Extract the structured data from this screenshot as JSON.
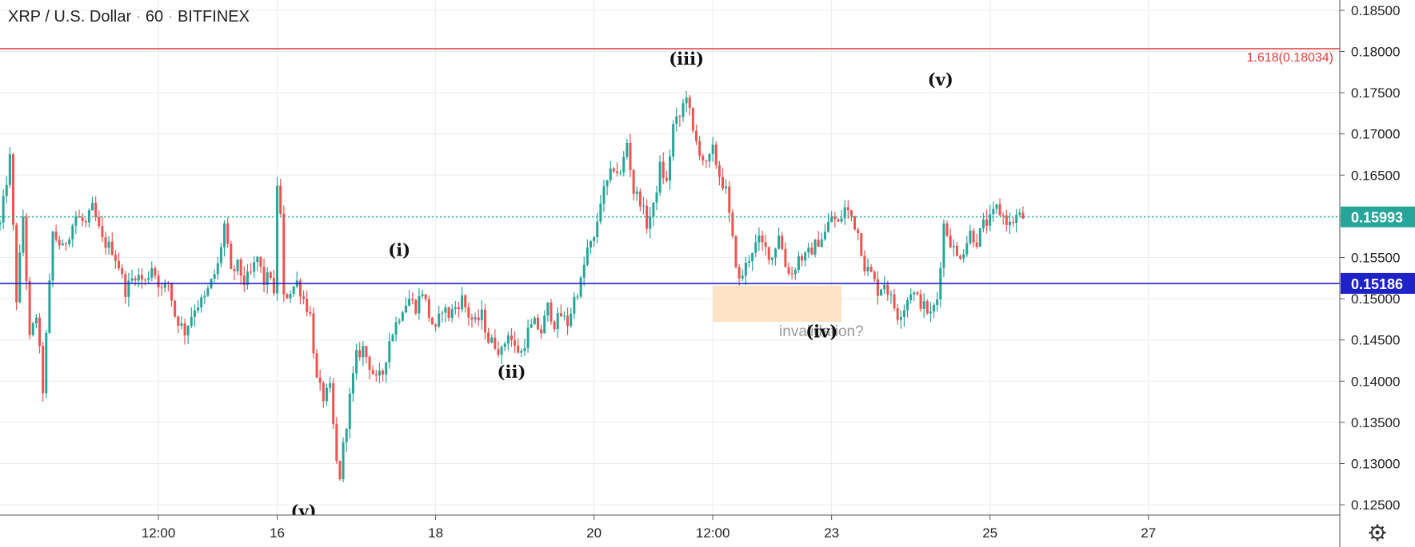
{
  "title": {
    "symbol": "XRP / U.S. Dollar",
    "interval": "60",
    "exchange": "BITFINEX"
  },
  "colors": {
    "up": "#26a69a",
    "down": "#ef5350",
    "fib_line": "#e53935",
    "support_line": "#1e22c8",
    "current_price_bg": "#26a69a",
    "support_price_bg": "#1e22c8",
    "zone": "#fde2c4",
    "grid": "#e6ecf2"
  },
  "settings_icon": "gear-icon",
  "chart_data": {
    "type": "candlestick",
    "ylim": [
      0.12375,
      0.18625
    ],
    "y_ticks": [
      "0.18500",
      "0.18000",
      "0.17500",
      "0.17000",
      "0.16500",
      "0.16000",
      "0.15500",
      "0.15000",
      "0.14500",
      "0.14000",
      "0.13500",
      "0.13000",
      "0.12500"
    ],
    "x_range_hours": [
      -36,
      370
    ],
    "x_ticks": [
      {
        "label": "12:00",
        "hour": 12
      },
      {
        "label": "16",
        "hour": 48
      },
      {
        "label": "18",
        "hour": 96
      },
      {
        "label": "20",
        "hour": 144
      },
      {
        "label": "12:00",
        "hour": 180
      },
      {
        "label": "23",
        "hour": 216
      },
      {
        "label": "25",
        "hour": 264
      },
      {
        "label": "27",
        "hour": 312
      }
    ],
    "current_price": {
      "value": 0.15993,
      "label": "0.15993"
    },
    "support": {
      "value": 0.15186,
      "label": "0.15186"
    },
    "fib": {
      "value": 0.18034,
      "label": "1.618(0.18034)"
    },
    "zone": {
      "hour_start": 180,
      "hour_end": 219,
      "y_low": 0.1472,
      "y_high": 0.1516,
      "label": "invalidation?"
    },
    "path": [
      [
        -36,
        0.159
      ],
      [
        -33,
        0.167
      ],
      [
        -31,
        0.15
      ],
      [
        -29,
        0.16
      ],
      [
        -27,
        0.145
      ],
      [
        -25,
        0.148
      ],
      [
        -23,
        0.139
      ],
      [
        -20,
        0.158
      ],
      [
        -17,
        0.156
      ],
      [
        -13,
        0.16
      ],
      [
        -10,
        0.159
      ],
      [
        -8,
        0.161
      ],
      [
        -5,
        0.157
      ],
      [
        -2,
        0.156
      ],
      [
        0,
        0.154
      ],
      [
        2,
        0.151
      ],
      [
        5,
        0.153
      ],
      [
        8,
        0.152
      ],
      [
        10,
        0.154
      ],
      [
        13,
        0.151
      ],
      [
        15,
        0.152
      ],
      [
        17,
        0.148
      ],
      [
        20,
        0.146
      ],
      [
        23,
        0.149
      ],
      [
        26,
        0.15
      ],
      [
        28,
        0.152
      ],
      [
        30,
        0.154
      ],
      [
        32,
        0.159
      ],
      [
        34,
        0.153
      ],
      [
        36,
        0.154
      ],
      [
        38,
        0.152
      ],
      [
        40,
        0.153
      ],
      [
        42,
        0.155
      ],
      [
        44,
        0.152
      ],
      [
        46,
        0.153
      ],
      [
        47,
        0.15
      ],
      [
        48,
        0.164
      ],
      [
        49,
        0.16
      ],
      [
        50,
        0.15
      ],
      [
        52,
        0.151
      ],
      [
        54,
        0.152
      ],
      [
        56,
        0.15
      ],
      [
        58,
        0.148
      ],
      [
        60,
        0.14
      ],
      [
        62,
        0.138
      ],
      [
        64,
        0.139
      ],
      [
        66,
        0.13
      ],
      [
        67,
        0.1285
      ],
      [
        68,
        0.132
      ],
      [
        70,
        0.138
      ],
      [
        72,
        0.143
      ],
      [
        74,
        0.144
      ],
      [
        76,
        0.142
      ],
      [
        78,
        0.14
      ],
      [
        80,
        0.141
      ],
      [
        82,
        0.145
      ],
      [
        84,
        0.147
      ],
      [
        86,
        0.149
      ],
      [
        88,
        0.15
      ],
      [
        90,
        0.149
      ],
      [
        92,
        0.151
      ],
      [
        94,
        0.148
      ],
      [
        96,
        0.146
      ],
      [
        98,
        0.149
      ],
      [
        100,
        0.148
      ],
      [
        102,
        0.149
      ],
      [
        104,
        0.15
      ],
      [
        106,
        0.148
      ],
      [
        108,
        0.147
      ],
      [
        110,
        0.148
      ],
      [
        112,
        0.145
      ],
      [
        114,
        0.1445
      ],
      [
        116,
        0.1435
      ],
      [
        118,
        0.146
      ],
      [
        120,
        0.144
      ],
      [
        122,
        0.1435
      ],
      [
        124,
        0.146
      ],
      [
        126,
        0.147
      ],
      [
        128,
        0.146
      ],
      [
        130,
        0.149
      ],
      [
        132,
        0.147
      ],
      [
        134,
        0.148
      ],
      [
        136,
        0.147
      ],
      [
        138,
        0.15
      ],
      [
        140,
        0.152
      ],
      [
        142,
        0.156
      ],
      [
        144,
        0.157
      ],
      [
        146,
        0.162
      ],
      [
        148,
        0.164
      ],
      [
        150,
        0.166
      ],
      [
        152,
        0.165
      ],
      [
        154,
        0.169
      ],
      [
        156,
        0.163
      ],
      [
        158,
        0.162
      ],
      [
        160,
        0.159
      ],
      [
        162,
        0.161
      ],
      [
        164,
        0.166
      ],
      [
        166,
        0.164
      ],
      [
        168,
        0.171
      ],
      [
        170,
        0.172
      ],
      [
        172,
        0.175
      ],
      [
        174,
        0.17
      ],
      [
        176,
        0.168
      ],
      [
        178,
        0.166
      ],
      [
        180,
        0.168
      ],
      [
        182,
        0.165
      ],
      [
        184,
        0.163
      ],
      [
        186,
        0.157
      ],
      [
        188,
        0.152
      ],
      [
        190,
        0.154
      ],
      [
        192,
        0.156
      ],
      [
        194,
        0.157
      ],
      [
        196,
        0.156
      ],
      [
        198,
        0.155
      ],
      [
        200,
        0.158
      ],
      [
        202,
        0.154
      ],
      [
        204,
        0.153
      ],
      [
        206,
        0.155
      ],
      [
        208,
        0.155
      ],
      [
        210,
        0.156
      ],
      [
        212,
        0.157
      ],
      [
        214,
        0.158
      ],
      [
        216,
        0.16
      ],
      [
        218,
        0.159
      ],
      [
        220,
        0.161
      ],
      [
        222,
        0.16
      ],
      [
        224,
        0.158
      ],
      [
        226,
        0.154
      ],
      [
        228,
        0.153
      ],
      [
        230,
        0.151
      ],
      [
        232,
        0.152
      ],
      [
        234,
        0.15
      ],
      [
        236,
        0.148
      ],
      [
        238,
        0.149
      ],
      [
        240,
        0.151
      ],
      [
        242,
        0.15
      ],
      [
        244,
        0.149
      ],
      [
        246,
        0.148
      ],
      [
        248,
        0.15
      ],
      [
        250,
        0.159
      ],
      [
        252,
        0.157
      ],
      [
        254,
        0.155
      ],
      [
        256,
        0.156
      ],
      [
        258,
        0.158
      ],
      [
        260,
        0.157
      ],
      [
        262,
        0.159
      ],
      [
        264,
        0.1595
      ],
      [
        266,
        0.161
      ],
      [
        268,
        0.16
      ],
      [
        270,
        0.159
      ],
      [
        272,
        0.16
      ],
      [
        274,
        0.1599
      ]
    ]
  },
  "wave_labels": [
    {
      "text": "(i)",
      "hour": 85,
      "price": 0.1552
    },
    {
      "text": "(ii)",
      "hour": 119,
      "price": 0.1404
    },
    {
      "text": "(iii)",
      "hour": 172,
      "price": 0.1784
    },
    {
      "text": "(iv)",
      "hour": 213,
      "price": 0.1453
    },
    {
      "text": "(v)",
      "hour": 249,
      "price": 0.1759
    },
    {
      "text": "(v)",
      "hour": 56,
      "price": 0.1235
    }
  ]
}
